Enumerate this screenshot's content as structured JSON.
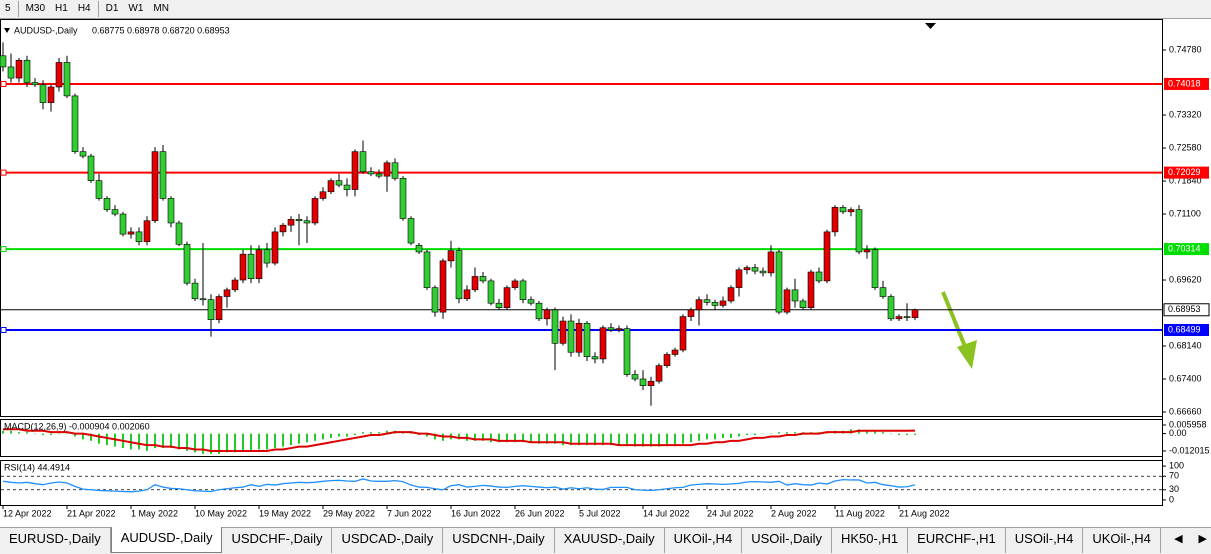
{
  "toolbar": [
    "5",
    "M30",
    "H1",
    "H4",
    "D1",
    "W1",
    "MN"
  ],
  "chart_data": [
    {
      "type": "candlestick",
      "title": "AUDUSD-,Daily",
      "ohlc_label": "0.68775 0.68978 0.68720 0.68953",
      "up_color": "#e00000",
      "down_color": "#33cc33",
      "candles": [
        [
          0.7465,
          0.7495,
          0.743,
          0.744
        ],
        [
          0.744,
          0.747,
          0.7405,
          0.7415
        ],
        [
          0.7415,
          0.746,
          0.7405,
          0.7455
        ],
        [
          0.7455,
          0.7465,
          0.7395,
          0.7405
        ],
        [
          0.7405,
          0.7415,
          0.7395,
          0.74
        ],
        [
          0.74,
          0.741,
          0.7345,
          0.736
        ],
        [
          0.736,
          0.74,
          0.734,
          0.7395
        ],
        [
          0.7395,
          0.746,
          0.7385,
          0.745
        ],
        [
          0.745,
          0.7465,
          0.737,
          0.7375
        ],
        [
          0.7375,
          0.738,
          0.7245,
          0.725
        ],
        [
          0.725,
          0.726,
          0.7235,
          0.724
        ],
        [
          0.724,
          0.7245,
          0.718,
          0.7185
        ],
        [
          0.7185,
          0.72,
          0.714,
          0.7145
        ],
        [
          0.7145,
          0.715,
          0.7115,
          0.712
        ],
        [
          0.712,
          0.713,
          0.7105,
          0.711
        ],
        [
          0.711,
          0.7115,
          0.706,
          0.7065
        ],
        [
          0.7065,
          0.708,
          0.7055,
          0.707
        ],
        [
          0.707,
          0.708,
          0.704,
          0.7048
        ],
        [
          0.7048,
          0.7105,
          0.704,
          0.7095
        ],
        [
          0.7095,
          0.726,
          0.709,
          0.725
        ],
        [
          0.725,
          0.7265,
          0.714,
          0.7145
        ],
        [
          0.7145,
          0.715,
          0.708,
          0.709
        ],
        [
          0.709,
          0.7095,
          0.7038,
          0.7042
        ],
        [
          0.7042,
          0.7048,
          0.695,
          0.6955
        ],
        [
          0.6955,
          0.6965,
          0.6915,
          0.692
        ],
        [
          0.692,
          0.7045,
          0.6905,
          0.6918
        ],
        [
          0.6918,
          0.693,
          0.6835,
          0.6873
        ],
        [
          0.6873,
          0.693,
          0.6865,
          0.6925
        ],
        [
          0.6925,
          0.6945,
          0.69,
          0.694
        ],
        [
          0.694,
          0.6968,
          0.6935,
          0.6962
        ],
        [
          0.6962,
          0.703,
          0.6955,
          0.702
        ],
        [
          0.702,
          0.704,
          0.6955,
          0.6965
        ],
        [
          0.6965,
          0.704,
          0.6955,
          0.703
        ],
        [
          0.703,
          0.7045,
          0.699,
          0.7
        ],
        [
          0.7,
          0.708,
          0.6995,
          0.707
        ],
        [
          0.707,
          0.709,
          0.706,
          0.7085
        ],
        [
          0.7085,
          0.7105,
          0.707,
          0.7098
        ],
        [
          0.7098,
          0.711,
          0.704,
          0.7095
        ],
        [
          0.7095,
          0.7105,
          0.7045,
          0.709
        ],
        [
          0.709,
          0.715,
          0.7085,
          0.7145
        ],
        [
          0.7145,
          0.717,
          0.714,
          0.716
        ],
        [
          0.716,
          0.719,
          0.7155,
          0.7185
        ],
        [
          0.7185,
          0.72,
          0.717,
          0.7175
        ],
        [
          0.7175,
          0.719,
          0.715,
          0.7165
        ],
        [
          0.7165,
          0.7255,
          0.715,
          0.725
        ],
        [
          0.725,
          0.7275,
          0.72,
          0.7205
        ],
        [
          0.7205,
          0.7215,
          0.7195,
          0.72
        ],
        [
          0.72,
          0.721,
          0.719,
          0.7195
        ],
        [
          0.7195,
          0.723,
          0.716,
          0.7225
        ],
        [
          0.7225,
          0.7235,
          0.7185,
          0.719
        ],
        [
          0.719,
          0.7195,
          0.7095,
          0.71
        ],
        [
          0.71,
          0.7105,
          0.704,
          0.7045
        ],
        [
          0.704,
          0.7045,
          0.702,
          0.7025
        ],
        [
          0.7025,
          0.703,
          0.694,
          0.6945
        ],
        [
          0.6945,
          0.695,
          0.688,
          0.689
        ],
        [
          0.689,
          0.701,
          0.6875,
          0.7005
        ],
        [
          0.7005,
          0.705,
          0.699,
          0.7028
        ],
        [
          0.7028,
          0.7035,
          0.691,
          0.692
        ],
        [
          0.692,
          0.695,
          0.6915,
          0.694
        ],
        [
          0.694,
          0.699,
          0.6935,
          0.697
        ],
        [
          0.697,
          0.698,
          0.6955,
          0.696
        ],
        [
          0.696,
          0.6965,
          0.6905,
          0.691
        ],
        [
          0.691,
          0.692,
          0.6895,
          0.69
        ],
        [
          0.69,
          0.695,
          0.6895,
          0.6945
        ],
        [
          0.6945,
          0.6965,
          0.694,
          0.696
        ],
        [
          0.696,
          0.6965,
          0.691,
          0.6918
        ],
        [
          0.6918,
          0.6925,
          0.6905,
          0.691
        ],
        [
          0.691,
          0.6915,
          0.687,
          0.6875
        ],
        [
          0.6875,
          0.69,
          0.686,
          0.6895
        ],
        [
          0.6895,
          0.69,
          0.676,
          0.682
        ],
        [
          0.682,
          0.688,
          0.6815,
          0.687
        ],
        [
          0.687,
          0.6885,
          0.679,
          0.68
        ],
        [
          0.68,
          0.6875,
          0.679,
          0.6865
        ],
        [
          0.6865,
          0.687,
          0.678,
          0.679
        ],
        [
          0.679,
          0.68,
          0.6775,
          0.6785
        ],
        [
          0.6785,
          0.686,
          0.6775,
          0.6855
        ],
        [
          0.6855,
          0.6865,
          0.6845,
          0.685
        ],
        [
          0.685,
          0.686,
          0.6845,
          0.6853
        ],
        [
          0.6853,
          0.686,
          0.6745,
          0.675
        ],
        [
          0.675,
          0.676,
          0.6735,
          0.674
        ],
        [
          0.674,
          0.676,
          0.6715,
          0.6725
        ],
        [
          0.6725,
          0.6745,
          0.668,
          0.6735
        ],
        [
          0.6735,
          0.6775,
          0.673,
          0.677
        ],
        [
          0.677,
          0.68,
          0.6765,
          0.6795
        ],
        [
          0.6795,
          0.681,
          0.679,
          0.6805
        ],
        [
          0.6805,
          0.6885,
          0.68,
          0.688
        ],
        [
          0.688,
          0.69,
          0.687,
          0.6895
        ],
        [
          0.6895,
          0.6925,
          0.686,
          0.6918
        ],
        [
          0.6918,
          0.693,
          0.6905,
          0.6912
        ],
        [
          0.6912,
          0.6918,
          0.6895,
          0.6905
        ],
        [
          0.6905,
          0.6925,
          0.69,
          0.6915
        ],
        [
          0.6915,
          0.695,
          0.691,
          0.6945
        ],
        [
          0.6945,
          0.699,
          0.6925,
          0.6985
        ],
        [
          0.6985,
          0.6995,
          0.6975,
          0.699
        ],
        [
          0.699,
          0.6998,
          0.6975,
          0.6982
        ],
        [
          0.6982,
          0.699,
          0.697,
          0.6978
        ],
        [
          0.6978,
          0.704,
          0.697,
          0.7025
        ],
        [
          0.7025,
          0.703,
          0.6885,
          0.689
        ],
        [
          0.689,
          0.6945,
          0.6885,
          0.694
        ],
        [
          0.694,
          0.6965,
          0.69,
          0.6915
        ],
        [
          0.6915,
          0.692,
          0.6895,
          0.69
        ],
        [
          0.69,
          0.6985,
          0.6895,
          0.698
        ],
        [
          0.698,
          0.699,
          0.6955,
          0.696
        ],
        [
          0.696,
          0.7075,
          0.6955,
          0.707
        ],
        [
          0.707,
          0.713,
          0.706,
          0.7125
        ],
        [
          0.7125,
          0.713,
          0.711,
          0.7115
        ],
        [
          0.7115,
          0.7125,
          0.7105,
          0.712
        ],
        [
          0.712,
          0.713,
          0.702,
          0.7025
        ],
        [
          0.7025,
          0.704,
          0.701,
          0.703
        ],
        [
          0.703,
          0.7035,
          0.694,
          0.6945
        ],
        [
          0.6945,
          0.696,
          0.692,
          0.6925
        ],
        [
          0.6925,
          0.693,
          0.687,
          0.6875
        ],
        [
          0.6875,
          0.6885,
          0.687,
          0.688
        ],
        [
          0.688,
          0.691,
          0.687,
          0.6878
        ],
        [
          0.68775,
          0.68978,
          0.6872,
          0.68953
        ]
      ],
      "ylim": [
        0.6657,
        0.75475
      ],
      "yticks": [
        {
          "value": 0.7478,
          "label": "0.74780"
        },
        {
          "value": 0.7332,
          "label": "0.73320"
        },
        {
          "value": 0.7258,
          "label": "0.72580"
        },
        {
          "value": 0.7184,
          "label": "0.71840"
        },
        {
          "value": 0.711,
          "label": "0.71100"
        },
        {
          "value": 0.6962,
          "label": "0.69620"
        },
        {
          "value": 0.6814,
          "label": "0.68140"
        },
        {
          "value": 0.674,
          "label": "0.67400"
        },
        {
          "value": 0.6666,
          "label": "0.66660"
        }
      ],
      "levels": [
        {
          "value": 0.74018,
          "color": "#ff0000"
        },
        {
          "value": 0.72029,
          "color": "#ff0000"
        },
        {
          "value": 0.70314,
          "color": "#00dd00"
        },
        {
          "value": 0.68499,
          "color": "#0000ff"
        }
      ],
      "current": {
        "value": 0.68953,
        "color": "#000000"
      },
      "xticks": [
        {
          "value": 0,
          "label": "12 Apr 2022"
        },
        {
          "value": 8,
          "label": "21 Apr 2022"
        },
        {
          "value": 16,
          "label": "1 May 2022"
        },
        {
          "value": 24,
          "label": "10 May 2022"
        },
        {
          "value": 32,
          "label": "19 May 2022"
        },
        {
          "value": 40,
          "label": "29 May 2022"
        },
        {
          "value": 48,
          "label": "7 Jun 2022"
        },
        {
          "value": 56,
          "label": "16 Jun 2022"
        },
        {
          "value": 64,
          "label": "26 Jun 2022"
        },
        {
          "value": 72,
          "label": "5 Jul 2022"
        },
        {
          "value": 80,
          "label": "14 Jul 2022"
        },
        {
          "value": 88,
          "label": "24 Jul 2022"
        },
        {
          "value": 96,
          "label": "2 Aug 2022"
        },
        {
          "value": 104,
          "label": "11 Aug 2022"
        },
        {
          "value": 112,
          "label": "21 Aug 2022"
        }
      ]
    },
    {
      "type": "macd",
      "title": "MACD(12,26,9) -0.000904 0.002060",
      "histogram": {
        "color": "#22cc22",
        "values": [
          0.002,
          0.002,
          0.001,
          0.001,
          0.0,
          -0.001,
          -0.001,
          0.0,
          0.0,
          -0.002,
          -0.004,
          -0.005,
          -0.007,
          -0.008,
          -0.009,
          -0.01,
          -0.011,
          -0.011,
          -0.012,
          -0.01,
          -0.01,
          -0.01,
          -0.011,
          -0.012,
          -0.013,
          -0.014,
          -0.014,
          -0.014,
          -0.013,
          -0.013,
          -0.012,
          -0.012,
          -0.011,
          -0.011,
          -0.01,
          -0.009,
          -0.008,
          -0.007,
          -0.006,
          -0.005,
          -0.004,
          -0.003,
          -0.002,
          -0.002,
          -0.001,
          0.001,
          0.001,
          0.001,
          0.002,
          0.002,
          0.001,
          0.0,
          -0.001,
          -0.002,
          -0.004,
          -0.005,
          -0.004,
          -0.004,
          -0.005,
          -0.005,
          -0.005,
          -0.006,
          -0.006,
          -0.006,
          -0.006,
          -0.006,
          -0.006,
          -0.007,
          -0.007,
          -0.007,
          -0.008,
          -0.008,
          -0.008,
          -0.008,
          -0.008,
          -0.008,
          -0.008,
          -0.008,
          -0.008,
          -0.009,
          -0.009,
          -0.009,
          -0.009,
          -0.008,
          -0.008,
          -0.007,
          -0.006,
          -0.005,
          -0.004,
          -0.004,
          -0.003,
          -0.003,
          -0.002,
          -0.001,
          -0.001,
          0.0,
          0.0,
          0.001,
          0.001,
          0.001,
          0.001,
          0.001,
          0.001,
          0.001,
          0.002,
          0.002,
          0.003,
          0.003,
          0.002,
          0.002,
          0.001,
          0.0,
          -0.001,
          -0.001,
          -0.000904
        ]
      },
      "signal": {
        "color": "#dd0000",
        "values": [
          0.003,
          0.003,
          0.003,
          0.002,
          0.002,
          0.002,
          0.001,
          0.001,
          0.001,
          0.0,
          0.0,
          -0.001,
          -0.002,
          -0.003,
          -0.004,
          -0.005,
          -0.006,
          -0.007,
          -0.008,
          -0.008,
          -0.009,
          -0.009,
          -0.01,
          -0.01,
          -0.011,
          -0.011,
          -0.012,
          -0.012,
          -0.012,
          -0.012,
          -0.012,
          -0.012,
          -0.012,
          -0.012,
          -0.011,
          -0.011,
          -0.01,
          -0.009,
          -0.009,
          -0.008,
          -0.007,
          -0.006,
          -0.005,
          -0.004,
          -0.003,
          -0.002,
          -0.001,
          -0.001,
          0.0,
          0.001,
          0.001,
          0.001,
          0.0,
          0.0,
          -0.001,
          -0.002,
          -0.002,
          -0.003,
          -0.003,
          -0.004,
          -0.004,
          -0.004,
          -0.005,
          -0.005,
          -0.005,
          -0.005,
          -0.006,
          -0.006,
          -0.006,
          -0.006,
          -0.006,
          -0.007,
          -0.007,
          -0.007,
          -0.007,
          -0.007,
          -0.007,
          -0.008,
          -0.008,
          -0.008,
          -0.008,
          -0.008,
          -0.008,
          -0.008,
          -0.008,
          -0.008,
          -0.008,
          -0.007,
          -0.007,
          -0.006,
          -0.006,
          -0.005,
          -0.005,
          -0.004,
          -0.003,
          -0.003,
          -0.002,
          -0.002,
          -0.001,
          -0.001,
          0.0,
          0.0,
          0.0,
          0.001,
          0.001,
          0.001,
          0.001,
          0.002,
          0.002,
          0.002,
          0.002,
          0.002,
          0.002,
          0.002,
          0.00206
        ]
      },
      "ylim": [
        -0.0155,
        0.0101
      ],
      "yticks": [
        0.005958,
        {
          "value": 0,
          "label": "0.00"
        },
        -0.012015
      ]
    },
    {
      "type": "rsi",
      "title": "RSI(14) 44.4914",
      "color": "#1e90ff",
      "values": [
        55,
        52,
        50,
        52,
        48,
        45,
        50,
        53,
        50,
        40,
        32,
        30,
        28,
        27,
        26,
        25,
        24,
        26,
        30,
        45,
        38,
        34,
        33,
        30,
        27,
        26,
        25,
        30,
        33,
        36,
        38,
        45,
        40,
        46,
        44,
        48,
        50,
        52,
        51,
        52,
        55,
        57,
        58,
        56,
        55,
        62,
        56,
        55,
        55,
        57,
        54,
        44,
        38,
        37,
        33,
        30,
        42,
        45,
        38,
        40,
        43,
        41,
        38,
        37,
        40,
        42,
        40,
        38,
        36,
        38,
        32,
        36,
        33,
        36,
        32,
        31,
        37,
        37,
        37,
        30,
        29,
        28,
        30,
        33,
        36,
        37,
        44,
        46,
        48,
        47,
        46,
        47,
        49,
        53,
        54,
        53,
        52,
        55,
        44,
        48,
        45,
        44,
        50,
        47,
        56,
        60,
        59,
        59,
        50,
        52,
        45,
        42,
        38,
        39,
        44.4914
      ],
      "ylim": [
        -15,
        118
      ],
      "yticks": [
        100,
        70,
        30,
        0
      ],
      "levels": [
        70,
        30
      ]
    }
  ],
  "tabs": [
    "EURUSD-,Daily",
    "AUDUSD-,Daily",
    "USDCHF-,Daily",
    "USDCAD-,Daily",
    "USDCNH-,Daily",
    "XAUUSD-,Daily",
    "UKOil-,H4",
    "USOil-,Daily",
    "HK50-,H1",
    "EURCHF-,H1",
    "USOil-,H4",
    "UKOil-,H4"
  ],
  "active_tab": 1
}
